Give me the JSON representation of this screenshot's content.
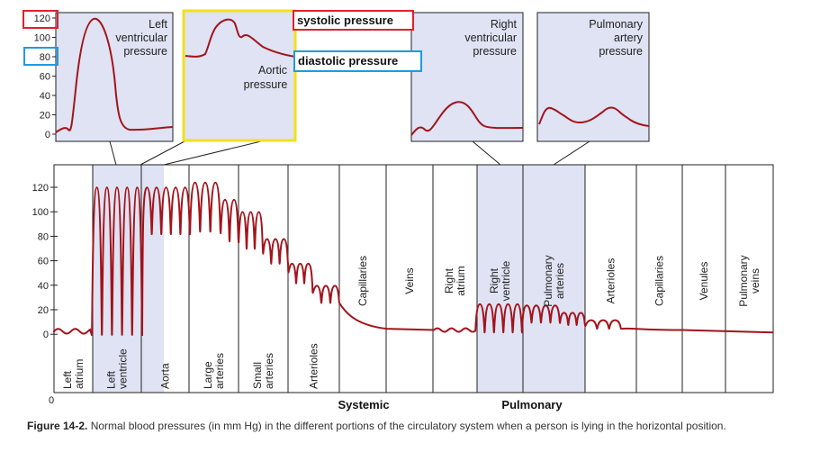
{
  "top_panels": {
    "left_ventricular": [
      "Left",
      "ventricular",
      "pressure"
    ],
    "aortic": [
      "Aortic",
      "pressure"
    ],
    "right_ventricular": [
      "Right",
      "ventricular",
      "pressure"
    ],
    "pulmonary_artery": [
      "Pulmonary",
      "artery",
      "pressure"
    ]
  },
  "top_axis_ticks": [
    "120",
    "100",
    "80",
    "60",
    "40",
    "20",
    "0"
  ],
  "annotations": {
    "systolic": "systolic pressure",
    "diastolic": "diastolic pressure"
  },
  "annotation_colors": {
    "systolic_box": "#e0202a",
    "diastolic_box": "#1e9be0",
    "aortic_panel": "#f2e01a"
  },
  "colors": {
    "curve": "#a3141b",
    "panel_fill": "#dfe3f3",
    "shade": "#dfe3f3"
  },
  "main_axis_ticks": [
    "120",
    "100",
    "80",
    "60",
    "40",
    "20",
    "0"
  ],
  "bottom_zero": "0",
  "segments": [
    [
      "Left",
      "atrium"
    ],
    [
      "Left",
      "ventricle"
    ],
    [
      "Aorta"
    ],
    [
      "Large",
      "arteries"
    ],
    [
      "Small",
      "arteries"
    ],
    [
      "Arterioles"
    ],
    [
      "Capillaries"
    ],
    [
      "Veins"
    ],
    [
      "Right",
      "atrium"
    ],
    [
      "Right",
      "ventricle"
    ],
    [
      "Pulmonary",
      "arteries"
    ],
    [
      "Arterioles"
    ],
    [
      "Capillaries"
    ],
    [
      "Venules"
    ],
    [
      "Pulmonary",
      "veins"
    ]
  ],
  "section_labels": {
    "systemic": "Systemic",
    "pulmonary": "Pulmonary"
  },
  "caption": {
    "label": "Figure 14-2.",
    "text": " Normal blood pressures (in mm Hg) in the different portions of the circulatory system when a person is lying in the horizontal position."
  }
}
